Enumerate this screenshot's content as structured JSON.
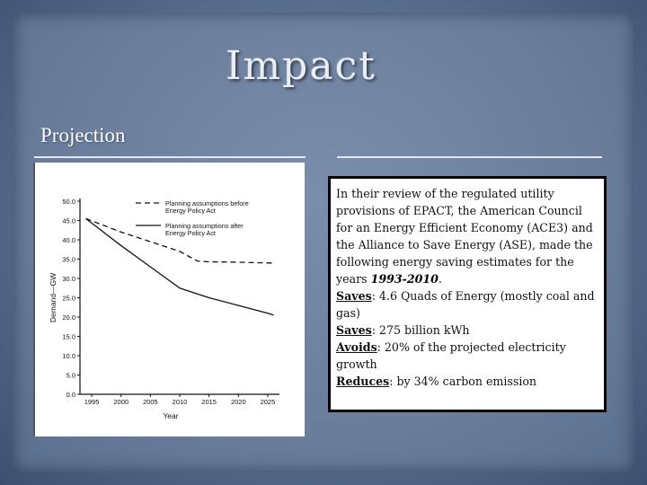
{
  "slide": {
    "title": "Impact",
    "subtitle": "Projection"
  },
  "text_panel": {
    "intro": "In their review of the regulated utility provisions of EPACT, the American Council for an Energy Efficient Economy (ACE3) and the Alliance to Save Energy (ASE), made the following energy saving estimates for the years ",
    "years": "1993-2010",
    "intro_end": ".",
    "saves1_label": "Saves",
    "saves1_text": ": 4.6 Quads of Energy (mostly coal and gas)",
    "saves2_label": "Saves",
    "saves2_text": ": 275 billion kWh",
    "avoids_label": "Avoids",
    "avoids_text": ": 20% of the projected electricity growth",
    "reduces_label": "Reduces",
    "reduces_text": ": by 34% carbon emission"
  },
  "chart_data": {
    "type": "line",
    "title": "",
    "xlabel": "Year",
    "ylabel": "Demand—GW",
    "x": [
      1995,
      2000,
      2005,
      2010,
      2015,
      2020,
      2025
    ],
    "x_ticks": [
      "1995",
      "2000",
      "2005",
      "2010",
      "2015",
      "2020",
      "2025"
    ],
    "y_ticks": [
      "0.0",
      "5.0",
      "10.0",
      "15.0",
      "20.0",
      "25.0",
      "30.0",
      "35.0",
      "40.0",
      "45.0",
      "50.0"
    ],
    "xlim": [
      1993,
      2027
    ],
    "ylim": [
      0,
      50
    ],
    "grid": false,
    "legend_position": "top-right",
    "series": [
      {
        "name": "Planning assumptions before Energy Policy Act",
        "style": "dashed",
        "x": [
          1994,
          2000,
          2005,
          2010,
          2013,
          2015,
          2020,
          2025,
          2026
        ],
        "values": [
          45.5,
          42.0,
          39.5,
          37.0,
          34.5,
          34.3,
          34.2,
          34.0,
          34.0
        ]
      },
      {
        "name": "Planning assumptions after Energy Policy Act",
        "style": "solid",
        "x": [
          1994,
          2000,
          2005,
          2010,
          2013,
          2015,
          2020,
          2025,
          2026
        ],
        "values": [
          45.5,
          38.5,
          33.0,
          27.5,
          26.0,
          25.0,
          23.0,
          21.0,
          20.5
        ]
      }
    ]
  }
}
